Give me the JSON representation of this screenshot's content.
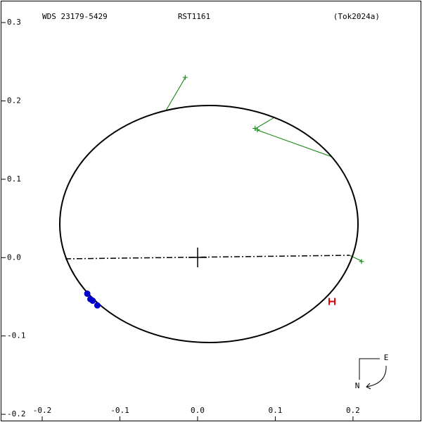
{
  "chart_data": {
    "type": "scatter",
    "title": "RST1161",
    "subtitle": "WDS 23179-5429",
    "reference": "(Tok2024a)",
    "xlim": [
      -0.2525,
      0.287
    ],
    "ylim": [
      -0.208,
      0.327
    ],
    "xticks": [
      -0.2,
      -0.1,
      {
        "value": 0,
        "label": "0.0"
      },
      0.1,
      0.2
    ],
    "yticks": [
      -0.2,
      -0.1,
      {
        "value": 0,
        "label": "0.0"
      },
      0.1,
      0.2,
      0.3
    ],
    "compass": {
      "east": "E",
      "north": "N"
    },
    "series": [
      {
        "color": "#008000",
        "marker": "plus",
        "x": [
          -0.016,
          0.074,
          0.077,
          0.211
        ],
        "values": [
          0.23,
          0.165,
          0.163,
          -0.005
        ]
      },
      {
        "color": "#0000cc",
        "marker": "dot",
        "x": [
          -0.142,
          -0.138,
          -0.135,
          -0.129
        ],
        "values": [
          -0.046,
          -0.053,
          -0.055,
          -0.061
        ]
      },
      {
        "color": "#dd0000",
        "marker": "h",
        "x": [
          0.173
        ],
        "values": [
          -0.056
        ]
      }
    ]
  }
}
